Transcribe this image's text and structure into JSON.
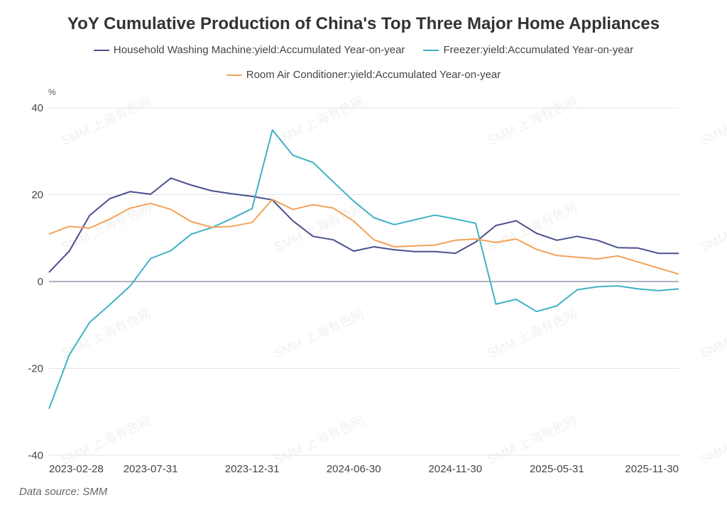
{
  "chart_data": {
    "type": "line",
    "title": "YoY Cumulative Production of China's Top Three Major Home Appliances",
    "ylabel": "%",
    "xlabel": "",
    "ylim": [
      -40,
      40
    ],
    "yticks": [
      40,
      20,
      0,
      -20,
      -40
    ],
    "grid": true,
    "legend_position": "top",
    "x": [
      "2023-02-28",
      "2023-03-31",
      "2023-04-30",
      "2023-05-31",
      "2023-06-30",
      "2023-07-31",
      "2023-08-31",
      "2023-09-30",
      "2023-10-31",
      "2023-11-30",
      "2023-12-31",
      "2024-02-29",
      "2024-03-31",
      "2024-04-30",
      "2024-05-31",
      "2024-06-30",
      "2024-07-31",
      "2024-08-31",
      "2024-09-30",
      "2024-10-31",
      "2024-11-30",
      "2024-12-31",
      "2025-02-28",
      "2025-03-31",
      "2025-04-30",
      "2025-05-31",
      "2025-06-30",
      "2025-07-31",
      "2025-08-31",
      "2025-09-30",
      "2025-10-31",
      "2025-11-30"
    ],
    "xtick_labels": [
      "2023-02-28",
      "2023-07-31",
      "2023-12-31",
      "2024-06-30",
      "2024-11-30",
      "2025-05-31",
      "2025-11-30"
    ],
    "series": [
      {
        "name": "Household Washing Machine:yield:Accumulated Year-on-year",
        "color": "#4b4f8f",
        "values": [
          2.1,
          7.0,
          15.2,
          19.1,
          20.7,
          20.1,
          23.8,
          22.2,
          20.9,
          20.2,
          19.6,
          18.8,
          14.0,
          10.4,
          9.6,
          7.0,
          8.0,
          7.3,
          6.9,
          6.9,
          6.5,
          9.1,
          12.9,
          14.0,
          11.1,
          9.5,
          10.4,
          9.5,
          7.8,
          7.7,
          6.5,
          6.5
        ]
      },
      {
        "name": "Freezer:yield:Accumulated Year-on-year",
        "color": "#3fb1c6",
        "values": [
          -29.3,
          -16.9,
          -9.4,
          -5.3,
          -1.0,
          5.3,
          7.1,
          10.9,
          12.4,
          14.5,
          16.8,
          34.9,
          29.1,
          27.4,
          22.9,
          18.5,
          14.7,
          13.1,
          14.2,
          15.3,
          14.4,
          13.4,
          -5.2,
          -4.1,
          -6.9,
          -5.6,
          -1.9,
          -1.2,
          -1.0,
          -1.7,
          -2.1,
          -1.7
        ]
      },
      {
        "name": "Room Air Conditioner:yield:Accumulated Year-on-year",
        "color": "#f2a25a",
        "values": [
          10.9,
          12.7,
          12.3,
          14.4,
          16.9,
          18.0,
          16.6,
          13.8,
          12.5,
          12.7,
          13.6,
          18.9,
          16.6,
          17.7,
          16.9,
          13.9,
          9.6,
          8.0,
          8.2,
          8.4,
          9.5,
          9.8,
          9.0,
          9.8,
          7.4,
          6.0,
          5.6,
          5.2,
          5.9,
          4.5,
          3.1,
          1.7
        ]
      }
    ]
  },
  "source": "Data source:  SMM",
  "watermark": "SMM 上海有色网"
}
